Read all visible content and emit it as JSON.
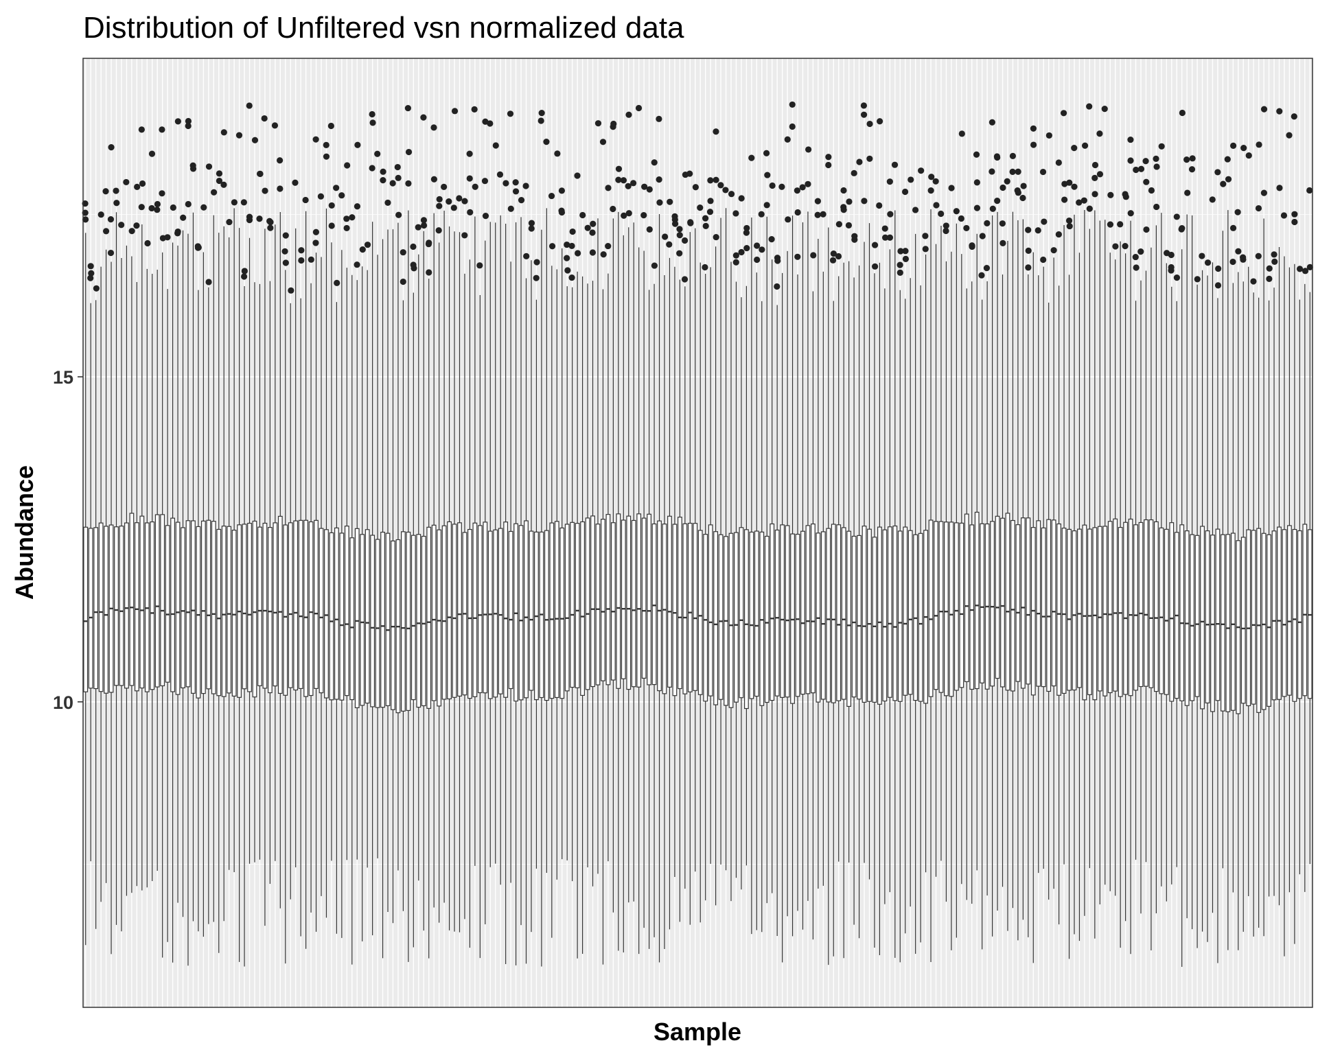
{
  "chart_data": {
    "type": "boxplot",
    "title": "Distribution of Unfiltered vsn normalized data",
    "xlabel": "Sample",
    "ylabel": "Abundance",
    "ylim": [
      5.3,
      19.9
    ],
    "yticks": [
      10,
      15
    ],
    "ytick_labels": [
      "10",
      "15"
    ],
    "x_tick_labels_shown": false,
    "n_samples": 240,
    "summary": {
      "median_approx": 11.3,
      "q1_approx": 10.1,
      "q3_approx": 12.7,
      "lower_whisker_range": [
        5.9,
        7.6
      ],
      "upper_whisker_range": [
        16.1,
        17.6
      ],
      "outlier_range": [
        16.1,
        19.2
      ]
    },
    "colors": {
      "panel_background": "#ebebeb",
      "gridline": "#ffffff",
      "box_line": "#333333",
      "outlier_point": "#222222",
      "panel_border": "#333333"
    }
  }
}
